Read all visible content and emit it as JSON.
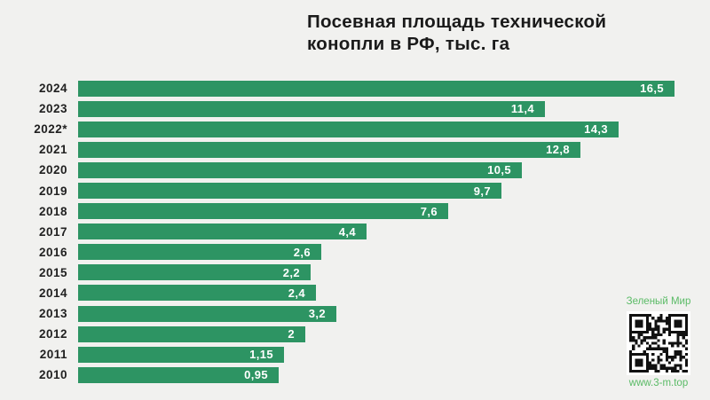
{
  "header": {
    "title_lines": [
      "Посевная площадь технической",
      "конопли в РФ, тыс. га"
    ]
  },
  "chart_data": {
    "type": "bar",
    "orientation": "horizontal",
    "title": "Посевная площадь технической конопли в РФ, тыс. га",
    "categories": [
      "2024",
      "2023",
      "2022*",
      "2021",
      "2020",
      "2019",
      "2018",
      "2017",
      "2016",
      "2015",
      "2014",
      "2013",
      "2012",
      "2011",
      "2010"
    ],
    "values": [
      16.5,
      11.4,
      14.3,
      12.8,
      10.5,
      9.7,
      7.6,
      4.4,
      2.6,
      2.2,
      2.4,
      3.2,
      2,
      1.15,
      0.95
    ],
    "value_labels": [
      "16,5",
      "11,4",
      "14,3",
      "12,8",
      "10,5",
      "9,7",
      "7,6",
      "4,4",
      "2,6",
      "2,2",
      "2,4",
      "3,2",
      "2",
      "1,15",
      "0,95"
    ],
    "unit": "тыс. га",
    "value_label_position": "inside-end",
    "grid": false,
    "legend": false,
    "axis_ticks": false
  },
  "watermark": {
    "brand": "Зеленый Мир",
    "url": "www.3-m.top",
    "qr_icon": "qr-code"
  },
  "colors": {
    "background": "#f1f1ef",
    "bar": "#2d9463",
    "title_text": "#1a1a1a",
    "year_text": "#212121",
    "value_text": "#ffffff",
    "watermark_green": "#5abb66",
    "qr_foreground": "#111111",
    "qr_background": "#ffffff"
  }
}
